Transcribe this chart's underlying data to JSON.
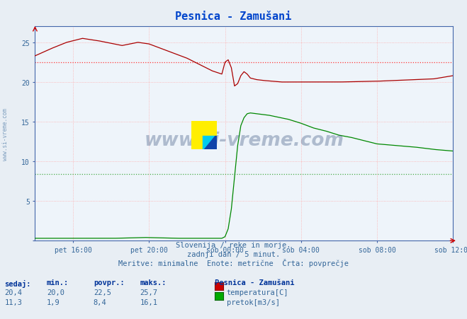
{
  "title": "Pesnica - Zamušani",
  "bg_color": "#e8eef4",
  "plot_bg_color": "#ffffff",
  "xlabel_ticks": [
    "pet 16:00",
    "pet 20:00",
    "sob 00:00",
    "sob 04:00",
    "sob 08:00",
    "sob 12:00"
  ],
  "ylim": [
    0,
    27
  ],
  "xlim": [
    0,
    264
  ],
  "subtitle1": "Slovenija / reke in morje.",
  "subtitle2": "zadnji dan / 5 minut.",
  "subtitle3": "Meritve: minimalne  Enote: metrične  Črta: povprečje",
  "legend_title": "Pesnica - Zamušani",
  "legend_items": [
    "temperatura[C]",
    "pretok[m3/s]"
  ],
  "legend_colors": [
    "#cc0000",
    "#00aa00"
  ],
  "table_headers": [
    "sedaj:",
    "min.:",
    "povpr.:",
    "maks.:"
  ],
  "table_row1": [
    "20,4",
    "20,0",
    "22,5",
    "25,7"
  ],
  "table_row2": [
    "11,3",
    "1,9",
    "8,4",
    "16,1"
  ],
  "avg_temp": 22.5,
  "avg_flow": 8.4,
  "temp_color": "#aa0000",
  "flow_color": "#008800",
  "avg_line_color_temp": "#ff6666",
  "avg_line_color_flow": "#66bb66",
  "watermark_text": "www.si-vreme.com",
  "watermark_color": "#1a3a6a",
  "watermark_alpha": 0.3,
  "title_color": "#0044cc",
  "label_color": "#336699",
  "header_color": "#003399",
  "tick_label_color": "#336699",
  "grid_color": "#ddaaaa",
  "spine_color": "#4466aa"
}
